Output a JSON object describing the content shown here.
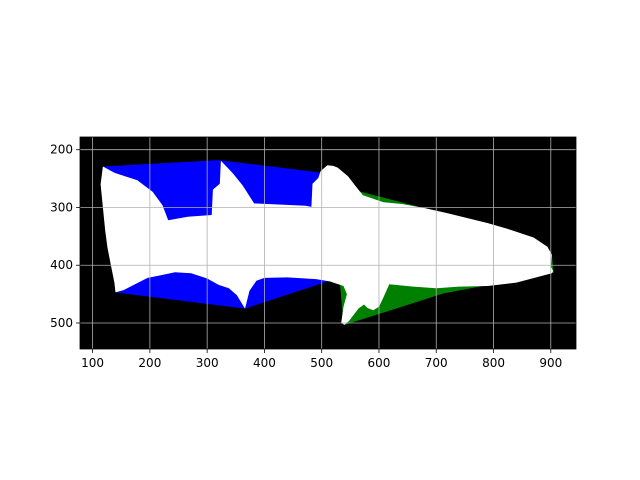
{
  "chart_data": {
    "type": "polygon-image",
    "title": "",
    "xlabel": "",
    "ylabel": "",
    "xlim": [
      78,
      944
    ],
    "ylim": [
      545,
      178
    ],
    "y_inverted": true,
    "grid": true,
    "background_color": "#000000",
    "x_ticks": [
      {
        "value": 100,
        "label": "100"
      },
      {
        "value": 200,
        "label": "200"
      },
      {
        "value": 300,
        "label": "300"
      },
      {
        "value": 400,
        "label": "400"
      },
      {
        "value": 500,
        "label": "500"
      },
      {
        "value": 600,
        "label": "600"
      },
      {
        "value": 700,
        "label": "700"
      },
      {
        "value": 800,
        "label": "800"
      },
      {
        "value": 900,
        "label": "900"
      }
    ],
    "y_ticks": [
      {
        "value": 200,
        "label": "200"
      },
      {
        "value": 300,
        "label": "300"
      },
      {
        "value": 400,
        "label": "400"
      },
      {
        "value": 500,
        "label": "500"
      }
    ],
    "regions": [
      {
        "id": "blue-region",
        "color": "#0000ff",
        "points": [
          [
            118,
            229
          ],
          [
            321,
            218
          ],
          [
            518,
            242
          ],
          [
            514,
            427
          ],
          [
            366,
            475
          ],
          [
            140,
            447
          ]
        ]
      },
      {
        "id": "green-region",
        "color": "#008000",
        "points": [
          [
            518,
            260
          ],
          [
            788,
            329
          ],
          [
            902,
            383
          ],
          [
            905,
            413
          ],
          [
            712,
            449
          ],
          [
            538,
            504
          ],
          [
            530,
            410
          ]
        ]
      },
      {
        "id": "white-shark",
        "color": "#ffffff",
        "points": [
          [
            118,
            229
          ],
          [
            138,
            240
          ],
          [
            178,
            253
          ],
          [
            205,
            273
          ],
          [
            222,
            296
          ],
          [
            232,
            322
          ],
          [
            266,
            316
          ],
          [
            308,
            313
          ],
          [
            310,
            269
          ],
          [
            322,
            259
          ],
          [
            324,
            219
          ],
          [
            345,
            241
          ],
          [
            362,
            262
          ],
          [
            382,
            293
          ],
          [
            472,
            297
          ],
          [
            482,
            299
          ],
          [
            484,
            259
          ],
          [
            494,
            249
          ],
          [
            498,
            237
          ],
          [
            510,
            227
          ],
          [
            520,
            228
          ],
          [
            528,
            231
          ],
          [
            546,
            246
          ],
          [
            560,
            264
          ],
          [
            572,
            279
          ],
          [
            608,
            291
          ],
          [
            640,
            294
          ],
          [
            680,
            301
          ],
          [
            720,
            310
          ],
          [
            790,
            327
          ],
          [
            824,
            337
          ],
          [
            870,
            352
          ],
          [
            894,
            368
          ],
          [
            902,
            382
          ],
          [
            900,
            402
          ],
          [
            904,
            410
          ],
          [
            902,
            414
          ],
          [
            840,
            430
          ],
          [
            790,
            436
          ],
          [
            740,
            437
          ],
          [
            700,
            440
          ],
          [
            660,
            437
          ],
          [
            618,
            433
          ],
          [
            608,
            455
          ],
          [
            600,
            472
          ],
          [
            590,
            478
          ],
          [
            580,
            474
          ],
          [
            574,
            468
          ],
          [
            564,
            475
          ],
          [
            548,
            496
          ],
          [
            540,
            503
          ],
          [
            534,
            500
          ],
          [
            538,
            472
          ],
          [
            544,
            450
          ],
          [
            538,
            436
          ],
          [
            514,
            428
          ],
          [
            490,
            424
          ],
          [
            440,
            421
          ],
          [
            400,
            422
          ],
          [
            386,
            427
          ],
          [
            374,
            444
          ],
          [
            366,
            475
          ],
          [
            352,
            452
          ],
          [
            338,
            440
          ],
          [
            320,
            434
          ],
          [
            300,
            423
          ],
          [
            272,
            414
          ],
          [
            244,
            412
          ],
          [
            216,
            418
          ],
          [
            196,
            422
          ],
          [
            172,
            434
          ],
          [
            154,
            443
          ],
          [
            140,
            447
          ],
          [
            138,
            430
          ],
          [
            132,
            400
          ],
          [
            126,
            370
          ],
          [
            122,
            340
          ],
          [
            118,
            300
          ],
          [
            114,
            260
          ]
        ]
      }
    ]
  }
}
